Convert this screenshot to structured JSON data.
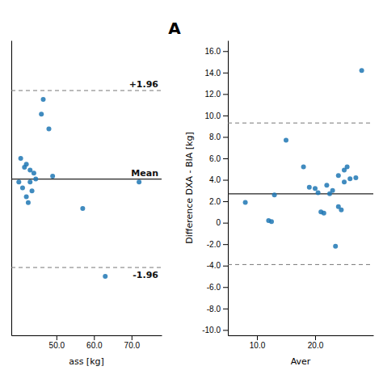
{
  "chart_data": [
    {
      "type": "scatter",
      "title": "A",
      "x": [
        40,
        40.5,
        41,
        41.5,
        42,
        42,
        42.5,
        43,
        43,
        43.5,
        44,
        44.5,
        46,
        46.5,
        48,
        49,
        57,
        63,
        72
      ],
      "values": [
        -0.3,
        0.5,
        -0.5,
        0.2,
        -0.8,
        0.3,
        -1.0,
        0.1,
        -0.3,
        -0.6,
        0.0,
        -0.2,
        2.0,
        2.5,
        1.5,
        -0.1,
        -1.2,
        -3.5,
        -0.3
      ],
      "xlim": [
        38,
        78
      ],
      "ylim": [
        -5.5,
        4.5
      ],
      "xticks": [
        {
          "value": 50,
          "label": "50.0"
        },
        {
          "value": 60,
          "label": "60.0"
        },
        {
          "value": 70,
          "label": "70.0"
        }
      ],
      "yticks": [],
      "tick_labels": "x",
      "xlabel": "ass [kg]",
      "reference_lines": [
        {
          "value": -0.2,
          "label": "Mean",
          "line_style": "solid"
        },
        {
          "value": 2.8,
          "label": "+1.96",
          "line_style": "dashed"
        },
        {
          "value": -3.2,
          "label": "-1.96",
          "line_style": "dashed"
        }
      ]
    },
    {
      "type": "scatter",
      "x": [
        8,
        12,
        12.5,
        13,
        15,
        18,
        19,
        20,
        20.5,
        21,
        21.5,
        22,
        22.5,
        23,
        23.5,
        24,
        24,
        24.5,
        25,
        25,
        25.5,
        26,
        27,
        28
      ],
      "values": [
        1.9,
        0.2,
        0.1,
        2.6,
        7.7,
        5.2,
        3.3,
        3.2,
        2.8,
        1.0,
        0.9,
        3.5,
        2.7,
        3.0,
        -2.2,
        1.5,
        4.4,
        1.2,
        3.8,
        4.9,
        5.2,
        4.1,
        4.2,
        14.2
      ],
      "xlim": [
        5,
        30
      ],
      "ylim": [
        -10.5,
        17.0
      ],
      "xticks": [
        {
          "value": 10,
          "label": "10.0"
        },
        {
          "value": 20,
          "label": "20.0"
        }
      ],
      "yticks": [
        {
          "value": -10,
          "label": "-10.0"
        },
        {
          "value": -8,
          "label": "-8.0"
        },
        {
          "value": -6,
          "label": "-6.0"
        },
        {
          "value": -4,
          "label": "-4.0"
        },
        {
          "value": -2,
          "label": "-2.0"
        },
        0,
        {
          "value": 2,
          "label": "2.0"
        },
        {
          "value": 4,
          "label": "4.0"
        },
        {
          "value": 6,
          "label": "6.0"
        },
        {
          "value": 8,
          "label": "8.0"
        },
        {
          "value": 10,
          "label": "10.0"
        },
        {
          "value": 12,
          "label": "12.0"
        },
        {
          "value": 14,
          "label": "14.0"
        },
        {
          "value": 16,
          "label": "16.0"
        }
      ],
      "xlabel": "Aver",
      "ylabel": "Difference DXA - BIA [kg]",
      "reference_lines": [
        {
          "value": 2.7,
          "line_style": "solid"
        },
        {
          "value": 9.3,
          "line_style": "dashed"
        },
        {
          "value": -3.9,
          "line_style": "dashed"
        }
      ]
    }
  ]
}
